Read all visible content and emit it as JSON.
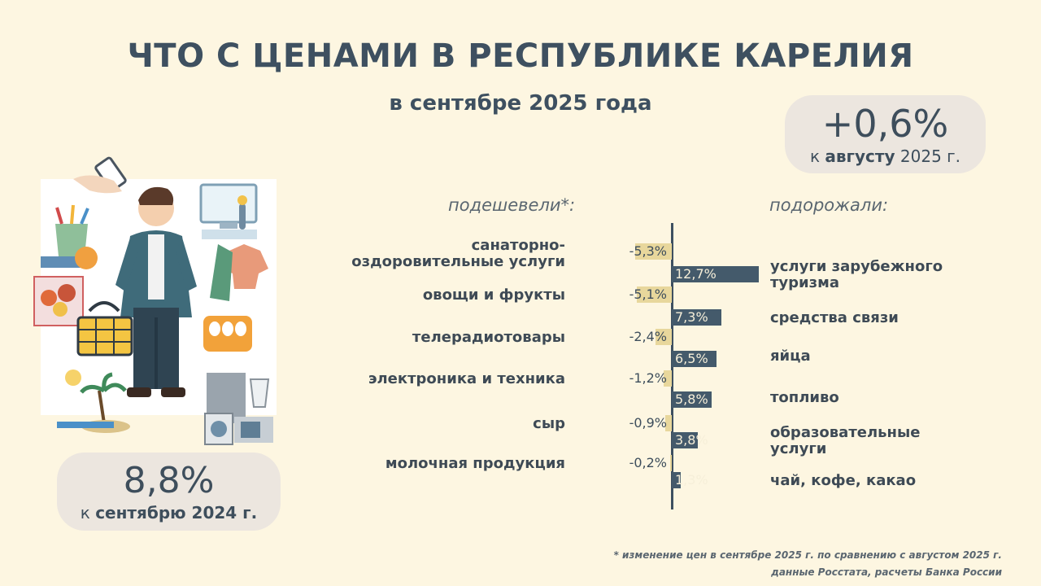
{
  "title": "ЧТО С ЦЕНАМИ В РЕСПУБЛИКЕ КАРЕЛИЯ",
  "subtitle": "в сентябре 2025 года",
  "badge_month": {
    "value": "+0,6%",
    "prefix": "к ",
    "bold": "августу",
    "suffix": " 2025 г."
  },
  "badge_year": {
    "value": "8,8%",
    "prefix": "к ",
    "bold": "сентябрю 2024 г."
  },
  "headers": {
    "left": "подешевели*:",
    "right": "подорожали:"
  },
  "footnote": "* изменение цен в сентябре 2025 г. по сравнению с августом 2025 г.\nданные Росстата, расчеты Банка России",
  "colors": {
    "negative": "#e8d79c",
    "positive": "#445a6b",
    "background": "#fdf6e1",
    "text": "#3e5060"
  },
  "chart_data": [
    {
      "type": "bar",
      "title": "подешевели*:",
      "categories": [
        "санаторно-\nоздоровительные услуги",
        "овощи и фрукты",
        "телерадиотовары",
        "электроника и техника",
        "сыр",
        "молочная продукция"
      ],
      "values": [
        -5.3,
        -5.1,
        -2.4,
        -1.2,
        -0.9,
        -0.2
      ],
      "value_labels": [
        "-5,3%",
        "-5,1%",
        "-2,4%",
        "-1,2%",
        "-0,9%",
        "-0,2%"
      ]
    },
    {
      "type": "bar",
      "title": "подорожали:",
      "categories": [
        "услуги зарубежного\nтуризма",
        "средства связи",
        "яйца",
        "топливо",
        "образовательные\nуслуги",
        "чай, кофе, какао"
      ],
      "values": [
        12.7,
        7.3,
        6.5,
        5.8,
        3.8,
        1.3
      ],
      "value_labels": [
        "12,7%",
        "7,3%",
        "6,5%",
        "5,8%",
        "3,8%",
        "1,3%"
      ]
    }
  ]
}
